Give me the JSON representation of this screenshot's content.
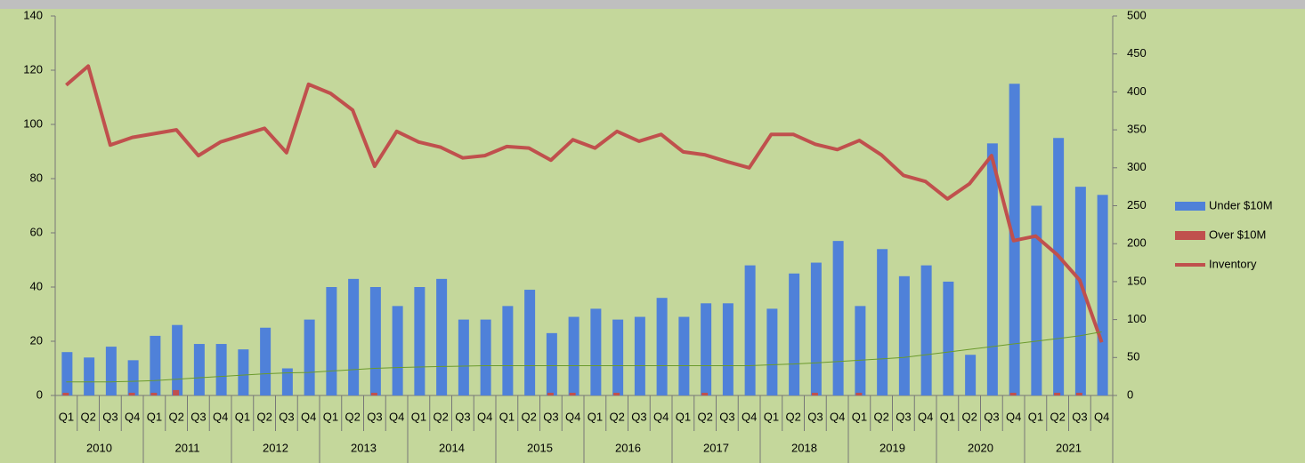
{
  "chart_data": {
    "type": "bar-line",
    "categories": [
      "Q1",
      "Q2",
      "Q3",
      "Q4",
      "Q1",
      "Q2",
      "Q3",
      "Q4",
      "Q1",
      "Q2",
      "Q3",
      "Q4",
      "Q1",
      "Q2",
      "Q3",
      "Q4",
      "Q1",
      "Q2",
      "Q3",
      "Q4",
      "Q1",
      "Q2",
      "Q3",
      "Q4",
      "Q1",
      "Q2",
      "Q3",
      "Q4",
      "Q1",
      "Q2",
      "Q3",
      "Q4",
      "Q1",
      "Q2",
      "Q3",
      "Q4",
      "Q1",
      "Q2",
      "Q3",
      "Q4",
      "Q1",
      "Q2",
      "Q3",
      "Q4",
      "Q1",
      "Q2",
      "Q3",
      "Q4"
    ],
    "years": [
      "2010",
      "2011",
      "2012",
      "2013",
      "2014",
      "2015",
      "2016",
      "2017",
      "2018",
      "2019",
      "2020",
      "2021"
    ],
    "series": [
      {
        "name": "Under $10M",
        "kind": "bar",
        "color": "#4f81d9",
        "axis": "y",
        "values": [
          16,
          14,
          18,
          13,
          22,
          26,
          19,
          19,
          17,
          25,
          10,
          28,
          40,
          43,
          40,
          33,
          40,
          43,
          28,
          28,
          33,
          39,
          23,
          29,
          32,
          28,
          29,
          36,
          29,
          34,
          34,
          48,
          32,
          45,
          49,
          57,
          33,
          54,
          44,
          48,
          42,
          15,
          93,
          115,
          70,
          95,
          77,
          74
        ]
      },
      {
        "name": "Over $10M",
        "kind": "bar",
        "color": "#c0504d",
        "axis": "y",
        "values": [
          1,
          0,
          0,
          1,
          1,
          2,
          0,
          0,
          0,
          0,
          0,
          0,
          0,
          0,
          1,
          0,
          0,
          0,
          0,
          0,
          0,
          0,
          1,
          1,
          0,
          1,
          0,
          0,
          0,
          1,
          0,
          0,
          0,
          0,
          1,
          0,
          1,
          0,
          0,
          0,
          0,
          0,
          0,
          1,
          0,
          1,
          1,
          0
        ]
      },
      {
        "name": "Inventory",
        "kind": "line",
        "color": "#c0504d",
        "axis": "y2",
        "values": [
          409,
          434,
          330,
          340,
          345,
          350,
          316,
          334,
          343,
          352,
          320,
          410,
          398,
          376,
          302,
          348,
          334,
          327,
          313,
          316,
          328,
          326,
          310,
          337,
          326,
          348,
          335,
          344,
          321,
          317,
          308,
          300,
          344,
          344,
          331,
          324,
          336,
          317,
          290,
          282,
          259,
          279,
          316,
          204,
          210,
          185,
          152,
          70
        ]
      },
      {
        "kind": "line",
        "color": "#6b9a2c",
        "axis": "y",
        "values": [
          5,
          5,
          5,
          5.2,
          5.5,
          6,
          6.5,
          7,
          7.5,
          8,
          8.3,
          8.5,
          9,
          9.5,
          10,
          10.3,
          10.5,
          10.7,
          10.8,
          11,
          11,
          11,
          11,
          11,
          11,
          11,
          11,
          11,
          11,
          11,
          11,
          11,
          11.3,
          11.6,
          12,
          12.5,
          13,
          13.5,
          14,
          15,
          16,
          17,
          18,
          19,
          20,
          21,
          22,
          23.5
        ]
      }
    ],
    "ylim": [
      0,
      140
    ],
    "yticks": [
      0,
      20,
      40,
      60,
      80,
      100,
      120,
      140
    ],
    "y2lim": [
      0,
      500
    ],
    "y2ticks": [
      0,
      50,
      100,
      150,
      200,
      250,
      300,
      350,
      400,
      450,
      500
    ],
    "legend": "right"
  }
}
